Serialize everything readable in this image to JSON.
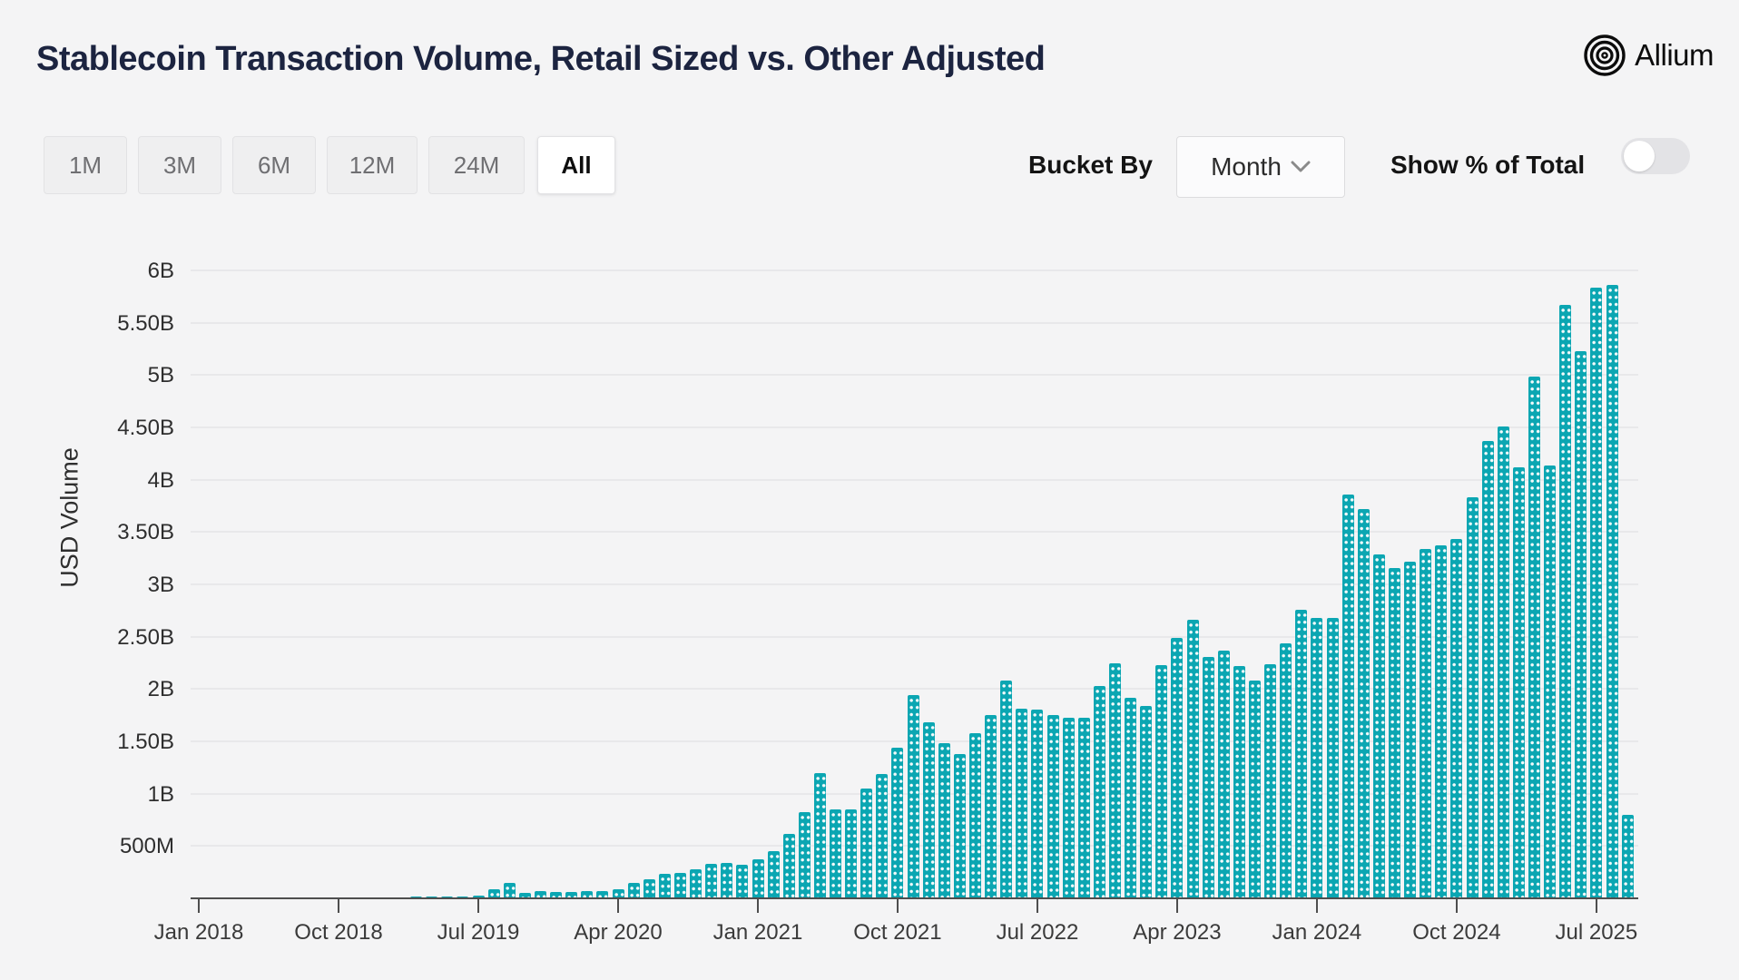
{
  "header": {
    "title": "Stablecoin Transaction Volume, Retail Sized vs. Other Adjusted",
    "brand": "Allium"
  },
  "controls": {
    "range_buttons": [
      {
        "label": "1M",
        "active": false
      },
      {
        "label": "3M",
        "active": false
      },
      {
        "label": "6M",
        "active": false
      },
      {
        "label": "12M",
        "active": false
      },
      {
        "label": "24M",
        "active": false
      },
      {
        "label": "All",
        "active": true
      }
    ],
    "bucket_by_label": "Bucket By",
    "bucket_value": "Month",
    "show_pct_label": "Show % of Total",
    "toggle_on": false
  },
  "chart_data": {
    "type": "bar",
    "title": "Stablecoin Transaction Volume, Retail Sized vs. Other Adjusted",
    "ylabel": "USD Volume",
    "unit": "USD millions",
    "bar_color": "#0BA6B2",
    "grid": true,
    "ylim": [
      0,
      6000
    ],
    "y_ticks": [
      {
        "label": "500M",
        "value": 500
      },
      {
        "label": "1B",
        "value": 1000
      },
      {
        "label": "1.50B",
        "value": 1500
      },
      {
        "label": "2B",
        "value": 2000
      },
      {
        "label": "2.50B",
        "value": 2500
      },
      {
        "label": "3B",
        "value": 3000
      },
      {
        "label": "3.50B",
        "value": 3500
      },
      {
        "label": "4B",
        "value": 4000
      },
      {
        "label": "4.50B",
        "value": 4500
      },
      {
        "label": "5B",
        "value": 5000
      },
      {
        "label": "5.50B",
        "value": 5500
      },
      {
        "label": "6B",
        "value": 6000
      }
    ],
    "x_ticks": [
      {
        "label": "Jan 2018",
        "m": 0
      },
      {
        "label": "Oct 2018",
        "m": 9
      },
      {
        "label": "Jul 2019",
        "m": 18
      },
      {
        "label": "Apr 2020",
        "m": 27
      },
      {
        "label": "Jan 2021",
        "m": 36
      },
      {
        "label": "Oct 2021",
        "m": 45
      },
      {
        "label": "Jul 2022",
        "m": 54
      },
      {
        "label": "Apr 2023",
        "m": 63
      },
      {
        "label": "Jan 2024",
        "m": 72
      },
      {
        "label": "Oct 2024",
        "m": 81
      },
      {
        "label": "Jul 2025",
        "m": 90
      }
    ],
    "months": [
      "2018-01",
      "2018-02",
      "2018-03",
      "2018-04",
      "2018-05",
      "2018-06",
      "2018-07",
      "2018-08",
      "2018-09",
      "2018-10",
      "2018-11",
      "2018-12",
      "2019-01",
      "2019-02",
      "2019-03",
      "2019-04",
      "2019-05",
      "2019-06",
      "2019-07",
      "2019-08",
      "2019-09",
      "2019-10",
      "2019-11",
      "2019-12",
      "2020-01",
      "2020-02",
      "2020-03",
      "2020-04",
      "2020-05",
      "2020-06",
      "2020-07",
      "2020-08",
      "2020-09",
      "2020-10",
      "2020-11",
      "2020-12",
      "2021-01",
      "2021-02",
      "2021-03",
      "2021-04",
      "2021-05",
      "2021-06",
      "2021-07",
      "2021-08",
      "2021-09",
      "2021-10",
      "2021-11",
      "2021-12",
      "2022-01",
      "2022-02",
      "2022-03",
      "2022-04",
      "2022-05",
      "2022-06",
      "2022-07",
      "2022-08",
      "2022-09",
      "2022-10",
      "2022-11",
      "2022-12",
      "2023-01",
      "2023-02",
      "2023-03",
      "2023-04",
      "2023-05",
      "2023-06",
      "2023-07",
      "2023-08",
      "2023-09",
      "2023-10",
      "2023-11",
      "2023-12",
      "2024-01",
      "2024-02",
      "2024-03",
      "2024-04",
      "2024-05",
      "2024-06",
      "2024-07",
      "2024-08",
      "2024-09",
      "2024-10",
      "2024-11",
      "2024-12",
      "2025-01",
      "2025-02",
      "2025-03",
      "2025-04",
      "2025-05",
      "2025-06",
      "2025-07",
      "2025-08",
      "2025-09"
    ],
    "values": [
      0,
      0,
      0,
      0,
      0,
      0,
      0,
      0,
      0,
      0,
      0,
      0,
      0,
      0,
      2,
      4,
      8,
      14,
      30,
      90,
      150,
      55,
      68,
      58,
      62,
      72,
      66,
      88,
      150,
      185,
      235,
      245,
      280,
      330,
      340,
      325,
      370,
      455,
      615,
      825,
      1200,
      850,
      850,
      1050,
      1190,
      1440,
      1940,
      1680,
      1480,
      1380,
      1580,
      1750,
      2080,
      1810,
      1800,
      1750,
      1730,
      1730,
      2030,
      2250,
      1920,
      1840,
      2230,
      2490,
      2660,
      2310,
      2370,
      2220,
      2080,
      2240,
      2440,
      2760,
      2680,
      2680,
      3860,
      3720,
      3290,
      3160,
      3220,
      3340,
      3370,
      3430,
      3830,
      4370,
      4510,
      4120,
      4990,
      4140,
      5670,
      5230,
      5840,
      5860,
      800
    ]
  }
}
